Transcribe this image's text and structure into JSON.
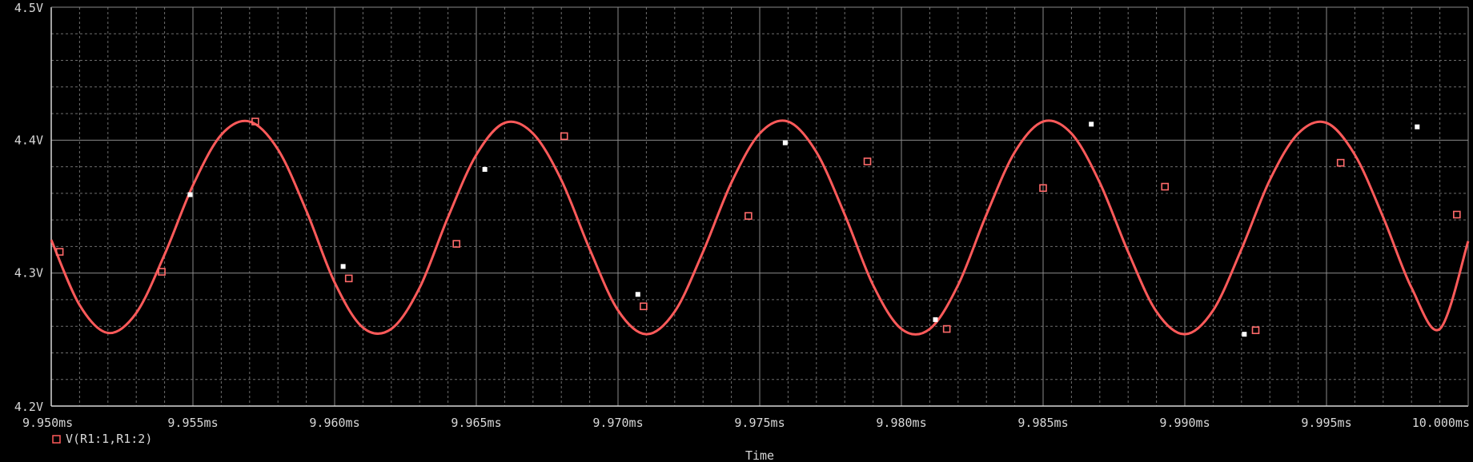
{
  "chart_data": {
    "type": "line",
    "title": "",
    "xlabel": "Time",
    "ylabel": "",
    "xlim": [
      9.95,
      10.0
    ],
    "ylim": [
      4.2,
      4.5
    ],
    "x_ticks": [
      {
        "value": 9.95,
        "label": "9.950ms"
      },
      {
        "value": 9.955,
        "label": "9.955ms"
      },
      {
        "value": 9.96,
        "label": "9.960ms"
      },
      {
        "value": 9.965,
        "label": "9.965ms"
      },
      {
        "value": 9.97,
        "label": "9.970ms"
      },
      {
        "value": 9.975,
        "label": "9.975ms"
      },
      {
        "value": 9.98,
        "label": "9.980ms"
      },
      {
        "value": 9.985,
        "label": "9.985ms"
      },
      {
        "value": 9.99,
        "label": "9.990ms"
      },
      {
        "value": 9.995,
        "label": "9.995ms"
      },
      {
        "value": 10.0,
        "label": "10.000ms"
      }
    ],
    "y_ticks": [
      {
        "value": 4.2,
        "label": "4.2V"
      },
      {
        "value": 4.3,
        "label": "4.3V"
      },
      {
        "value": 4.4,
        "label": "4.4V"
      },
      {
        "value": 4.5,
        "label": "4.5V"
      }
    ],
    "grid": true,
    "background": "#000000",
    "grid_color": "#8a8a8a",
    "axis_color": "#d8d8d8",
    "legend_position": "bottom-left",
    "series": [
      {
        "name": "V(R1:1,R1:2)",
        "color": "#ff5a5a",
        "marker": "square",
        "x": [
          9.95,
          9.951,
          9.952,
          9.953,
          9.954,
          9.955,
          9.956,
          9.957,
          9.958,
          9.959,
          9.96,
          9.961,
          9.962,
          9.963,
          9.964,
          9.965,
          9.966,
          9.967,
          9.968,
          9.969,
          9.97,
          9.971,
          9.972,
          9.973,
          9.974,
          9.975,
          9.976,
          9.977,
          9.978,
          9.979,
          9.98,
          9.981,
          9.982,
          9.983,
          9.984,
          9.985,
          9.986,
          9.987,
          9.988,
          9.989,
          9.99,
          9.991,
          9.992,
          9.993,
          9.994,
          9.995,
          9.996,
          9.997,
          9.998,
          9.999,
          10.0
        ],
        "values": [
          4.325,
          4.276,
          4.255,
          4.27,
          4.314,
          4.366,
          4.404,
          4.414,
          4.393,
          4.347,
          4.293,
          4.259,
          4.258,
          4.289,
          4.342,
          4.389,
          4.413,
          4.405,
          4.37,
          4.318,
          4.272,
          4.254,
          4.271,
          4.316,
          4.368,
          4.405,
          4.414,
          4.391,
          4.344,
          4.291,
          4.258,
          4.258,
          4.291,
          4.344,
          4.391,
          4.414,
          4.405,
          4.368,
          4.316,
          4.271,
          4.254,
          4.272,
          4.318,
          4.37,
          4.405,
          4.413,
          4.389,
          4.342,
          4.289,
          4.258,
          4.324
        ]
      }
    ],
    "markers": [
      {
        "x": 9.9503,
        "y": 4.316,
        "fill": "none"
      },
      {
        "x": 9.9539,
        "y": 4.301,
        "fill": "none"
      },
      {
        "x": 9.9549,
        "y": 4.359,
        "fill": "white"
      },
      {
        "x": 9.9572,
        "y": 4.414,
        "fill": "none"
      },
      {
        "x": 9.9603,
        "y": 4.305,
        "fill": "white"
      },
      {
        "x": 9.9605,
        "y": 4.296,
        "fill": "none"
      },
      {
        "x": 9.9643,
        "y": 4.322,
        "fill": "none"
      },
      {
        "x": 9.9653,
        "y": 4.378,
        "fill": "white"
      },
      {
        "x": 9.9681,
        "y": 4.403,
        "fill": "none"
      },
      {
        "x": 9.9707,
        "y": 4.284,
        "fill": "white"
      },
      {
        "x": 9.9709,
        "y": 4.275,
        "fill": "none"
      },
      {
        "x": 9.9746,
        "y": 4.343,
        "fill": "none"
      },
      {
        "x": 9.9759,
        "y": 4.398,
        "fill": "white"
      },
      {
        "x": 9.9788,
        "y": 4.384,
        "fill": "none"
      },
      {
        "x": 9.9812,
        "y": 4.265,
        "fill": "white"
      },
      {
        "x": 9.9816,
        "y": 4.258,
        "fill": "none"
      },
      {
        "x": 9.985,
        "y": 4.364,
        "fill": "none"
      },
      {
        "x": 9.9867,
        "y": 4.412,
        "fill": "white"
      },
      {
        "x": 9.9893,
        "y": 4.365,
        "fill": "none"
      },
      {
        "x": 9.9921,
        "y": 4.254,
        "fill": "white"
      },
      {
        "x": 9.9925,
        "y": 4.257,
        "fill": "none"
      },
      {
        "x": 9.9955,
        "y": 4.383,
        "fill": "none"
      },
      {
        "x": 9.9982,
        "y": 4.41,
        "fill": "white"
      },
      {
        "x": 9.9996,
        "y": 4.344,
        "fill": "none"
      }
    ]
  }
}
